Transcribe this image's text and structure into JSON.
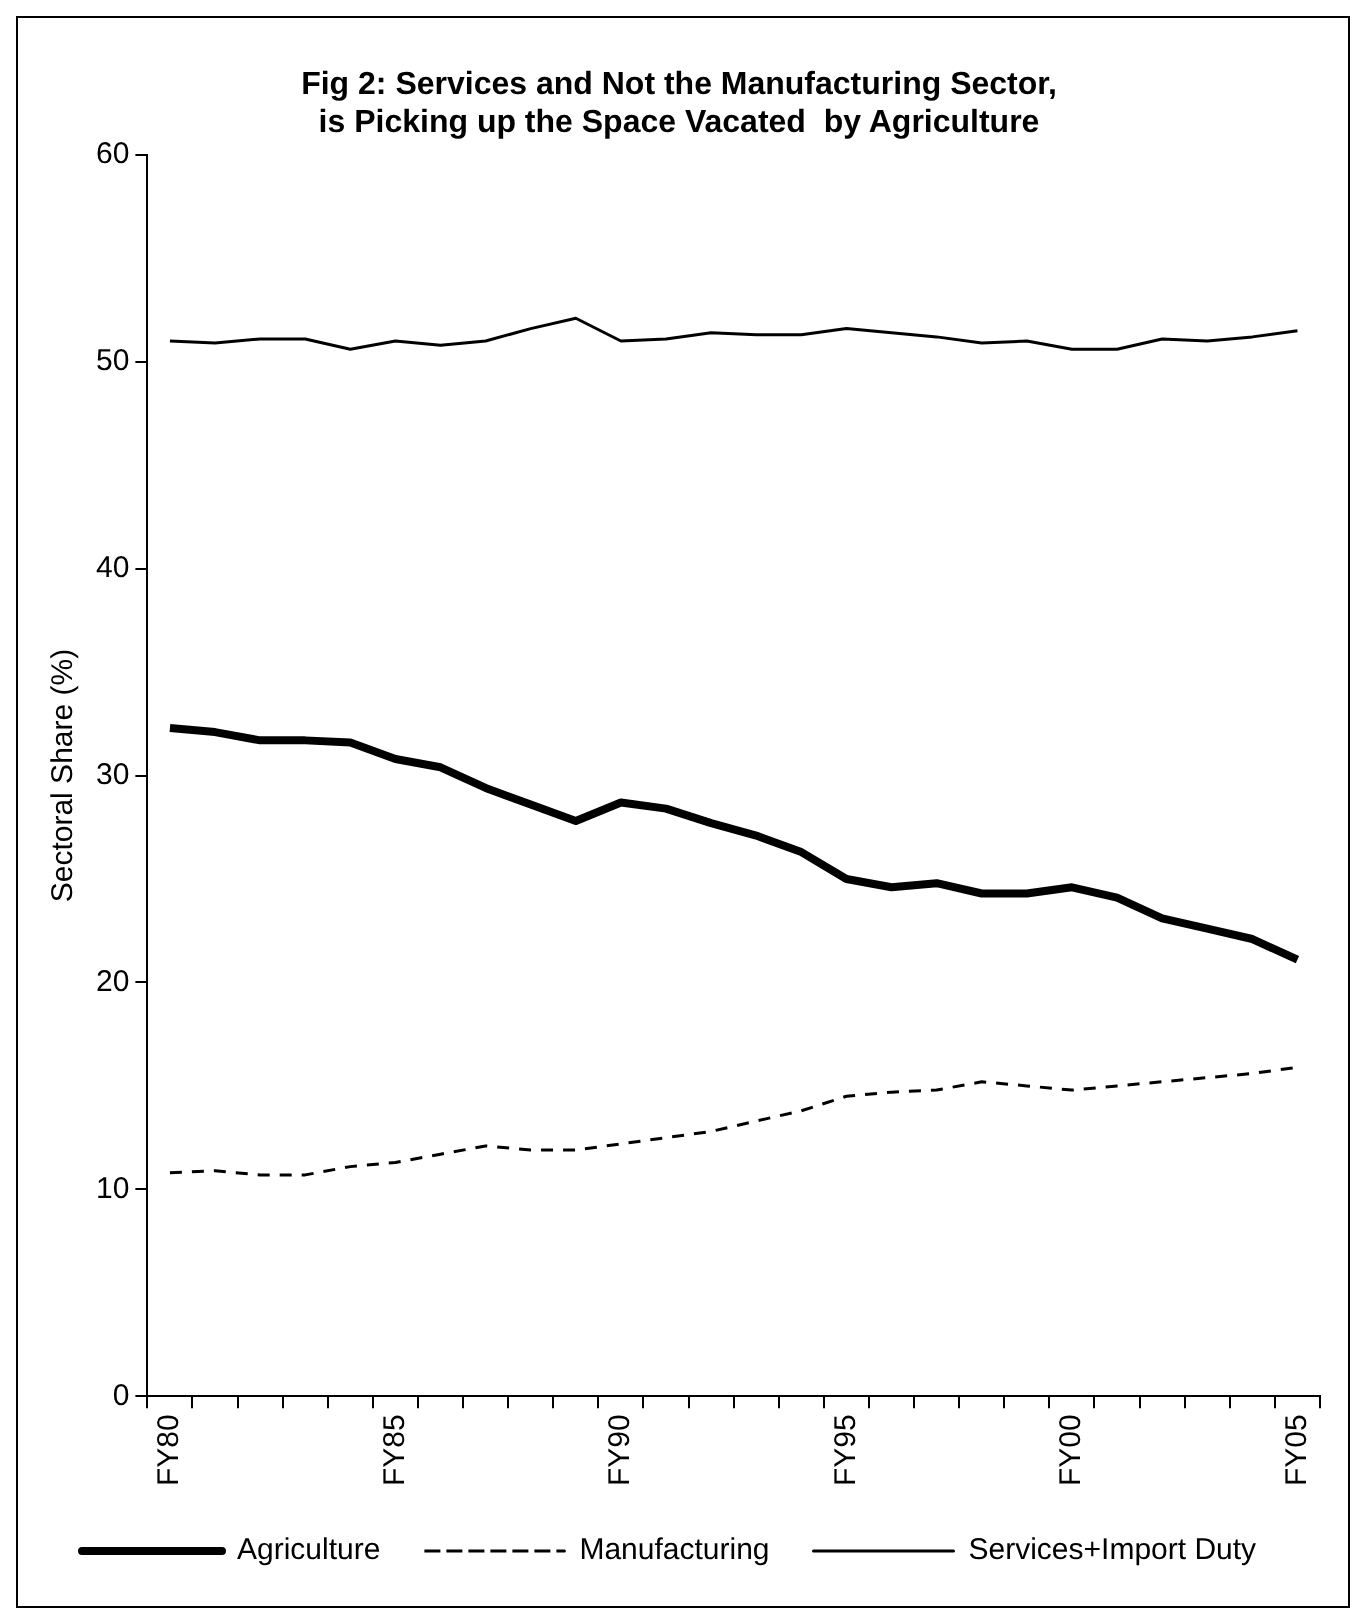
{
  "chart_data": {
    "type": "line",
    "title": "Fig 2: Services and Not the Manufacturing Sector,\nis Picking up the Space Vacated  by Agriculture",
    "ylabel": "Sectoral Share (%)",
    "categories": [
      "FY80",
      null,
      null,
      null,
      null,
      "FY85",
      null,
      null,
      null,
      null,
      "FY90",
      null,
      null,
      null,
      null,
      "FY95",
      null,
      null,
      null,
      null,
      "FY00",
      null,
      null,
      null,
      null,
      "FY05"
    ],
    "series": [
      {
        "name": "Agriculture",
        "color": "#000000",
        "line_style": "solid",
        "values": [
          32.3,
          32.1,
          31.7,
          31.7,
          31.6,
          30.8,
          30.4,
          29.4,
          28.6,
          27.8,
          28.7,
          28.4,
          27.7,
          27.1,
          26.3,
          25.0,
          24.6,
          24.8,
          24.3,
          24.3,
          24.6,
          24.1,
          23.1,
          22.6,
          22.1,
          21.1
        ]
      },
      {
        "name": "Manufacturing",
        "color": "#000000",
        "line_style": "dashed",
        "values": [
          10.8,
          10.9,
          10.7,
          10.7,
          11.1,
          11.3,
          11.7,
          12.1,
          11.9,
          11.9,
          12.2,
          12.5,
          12.8,
          13.3,
          13.8,
          14.5,
          14.7,
          14.8,
          15.2,
          15.0,
          14.8,
          15.0,
          15.2,
          15.4,
          15.6,
          15.9
        ]
      },
      {
        "name": "Services+Import Duty",
        "color": "#000000",
        "line_style": "solid",
        "values": [
          51.0,
          50.9,
          51.1,
          51.1,
          50.6,
          51.0,
          50.8,
          51.0,
          51.6,
          52.1,
          51.0,
          51.1,
          51.4,
          51.3,
          51.3,
          51.6,
          51.4,
          51.2,
          50.9,
          51.0,
          50.6,
          50.6,
          51.1,
          51.0,
          51.2,
          51.5
        ]
      }
    ],
    "ylim": [
      0,
      60
    ],
    "yticks": [
      0,
      10,
      20,
      30,
      40,
      50,
      60
    ],
    "grid": false,
    "legend": "bottom",
    "marker": "none"
  }
}
